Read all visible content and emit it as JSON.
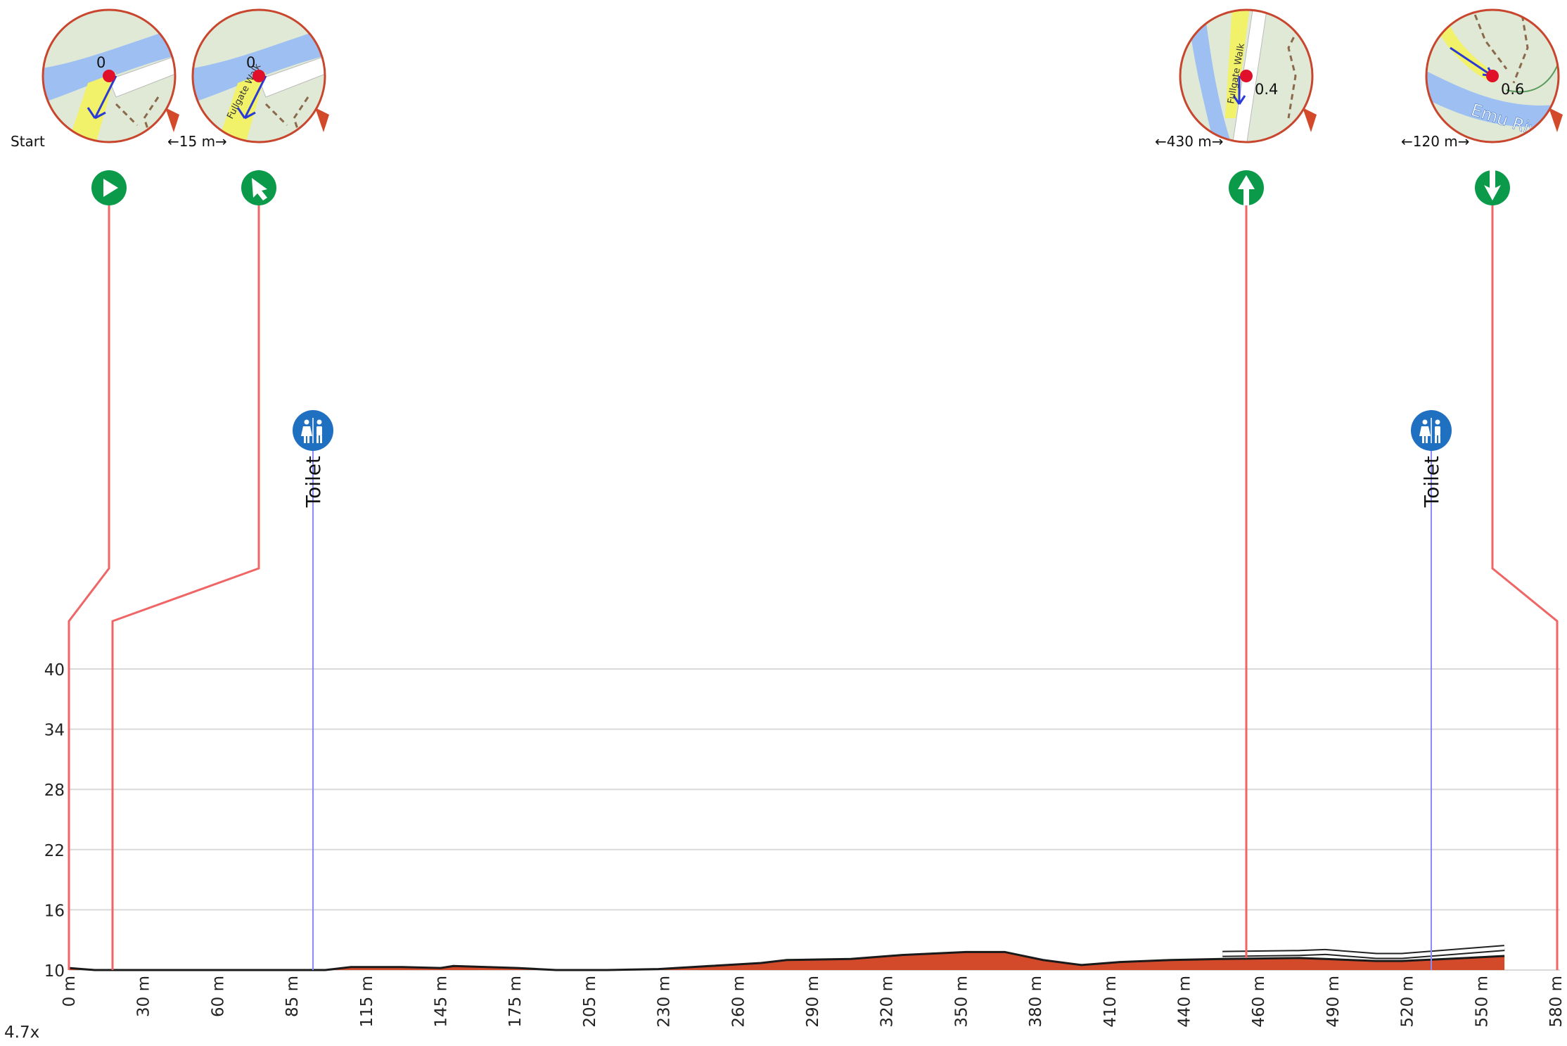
{
  "zoom_label": "4.7x",
  "colors": {
    "profile_fill": "#d24a2a",
    "profile_stroke": "#1a1a1a",
    "leader": "#f06565",
    "poi_line": "#8a8aff",
    "turn_icon": "#0a9a4a",
    "toilet_icon": "#1f70c1"
  },
  "waypoints": [
    {
      "id": "start",
      "label": "Start",
      "icon": "play-icon",
      "turn": "start",
      "distance": 0,
      "map_num": "0",
      "gap_label": ""
    },
    {
      "id": "turn-1",
      "label": "",
      "icon": "slight-left-arrow-icon",
      "turn": "slight-left",
      "distance": 15,
      "map_num": "0",
      "gap_label": "←15 m→",
      "map_street": "Fullgate Walk"
    },
    {
      "id": "turn-2",
      "label": "",
      "icon": "straight-arrow-icon",
      "turn": "straight",
      "distance": 445,
      "map_num": "0.4",
      "gap_label": "←430 m→",
      "map_street": "Fullgate Walk"
    },
    {
      "id": "turn-3",
      "label": "",
      "icon": "keep-arrow-icon",
      "turn": "keep",
      "distance": 565,
      "map_num": "0.6",
      "gap_label": "←120 m→",
      "map_river": "Emu River"
    }
  ],
  "pois": [
    {
      "label": "Toilet",
      "icon": "toilet-icon",
      "distance": 95
    },
    {
      "label": "Toilet",
      "icon": "toilet-icon",
      "distance": 530
    }
  ],
  "chart_data": {
    "type": "area",
    "xlabel": "",
    "ylabel": "",
    "xlim": [
      0,
      580
    ],
    "ylim": [
      10,
      40
    ],
    "x_ticks": [
      "0 m",
      "30 m",
      "60 m",
      "85 m",
      "115 m",
      "145 m",
      "175 m",
      "205 m",
      "230 m",
      "260 m",
      "290 m",
      "320 m",
      "350 m",
      "380 m",
      "410 m",
      "440 m",
      "460 m",
      "490 m",
      "520 m",
      "550 m",
      "580 m"
    ],
    "y_ticks": [
      "40",
      "34",
      "28",
      "22",
      "16",
      "10"
    ],
    "series": [
      {
        "x": [
          0,
          10,
          30,
          60,
          85,
          100,
          110,
          130,
          145,
          150,
          175,
          190,
          210,
          230,
          250,
          270,
          280,
          305,
          325,
          350,
          365,
          380,
          395,
          410,
          430,
          450,
          480,
          490,
          510,
          520,
          545,
          560
        ],
        "y": [
          10.2,
          10.0,
          10.0,
          10.0,
          10.0,
          10.0,
          10.3,
          10.3,
          10.2,
          10.4,
          10.2,
          10.0,
          10.0,
          10.1,
          10.4,
          10.7,
          11.0,
          11.1,
          11.5,
          11.8,
          11.8,
          11.0,
          10.5,
          10.8,
          11.0,
          11.1,
          11.2,
          11.1,
          10.9,
          10.9,
          11.2,
          11.4
        ]
      }
    ],
    "grid": true
  }
}
